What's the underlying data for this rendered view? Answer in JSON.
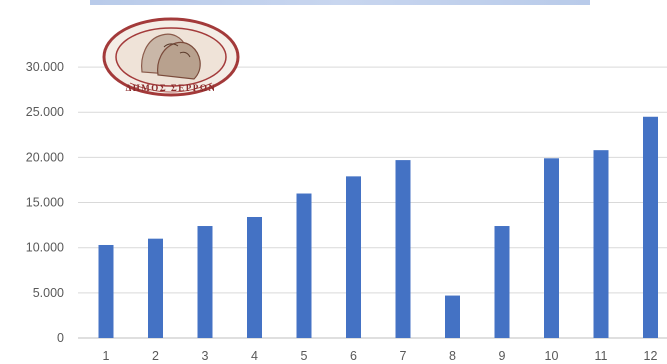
{
  "colors": {
    "bar": "#4472c4",
    "grid": "#d9d9d9",
    "tick_text": "#595959",
    "logo_ring": "#a33a3a"
  },
  "logo": {
    "text": "ΔΗΜΟΣ ΣΕΡΡΩΝ"
  },
  "chart_data": {
    "type": "bar",
    "categories": [
      "1",
      "2",
      "3",
      "4",
      "5",
      "6",
      "7",
      "8",
      "9",
      "10",
      "11",
      "12"
    ],
    "values": [
      10300,
      11000,
      12400,
      13400,
      16000,
      17900,
      19700,
      4700,
      12400,
      19900,
      20800,
      24500
    ],
    "yticks": [
      "0",
      "5.000",
      "10.000",
      "15.000",
      "20.000",
      "25.000",
      "30.000"
    ],
    "ylim": [
      0,
      33000
    ],
    "grid": true,
    "legend": "none"
  }
}
